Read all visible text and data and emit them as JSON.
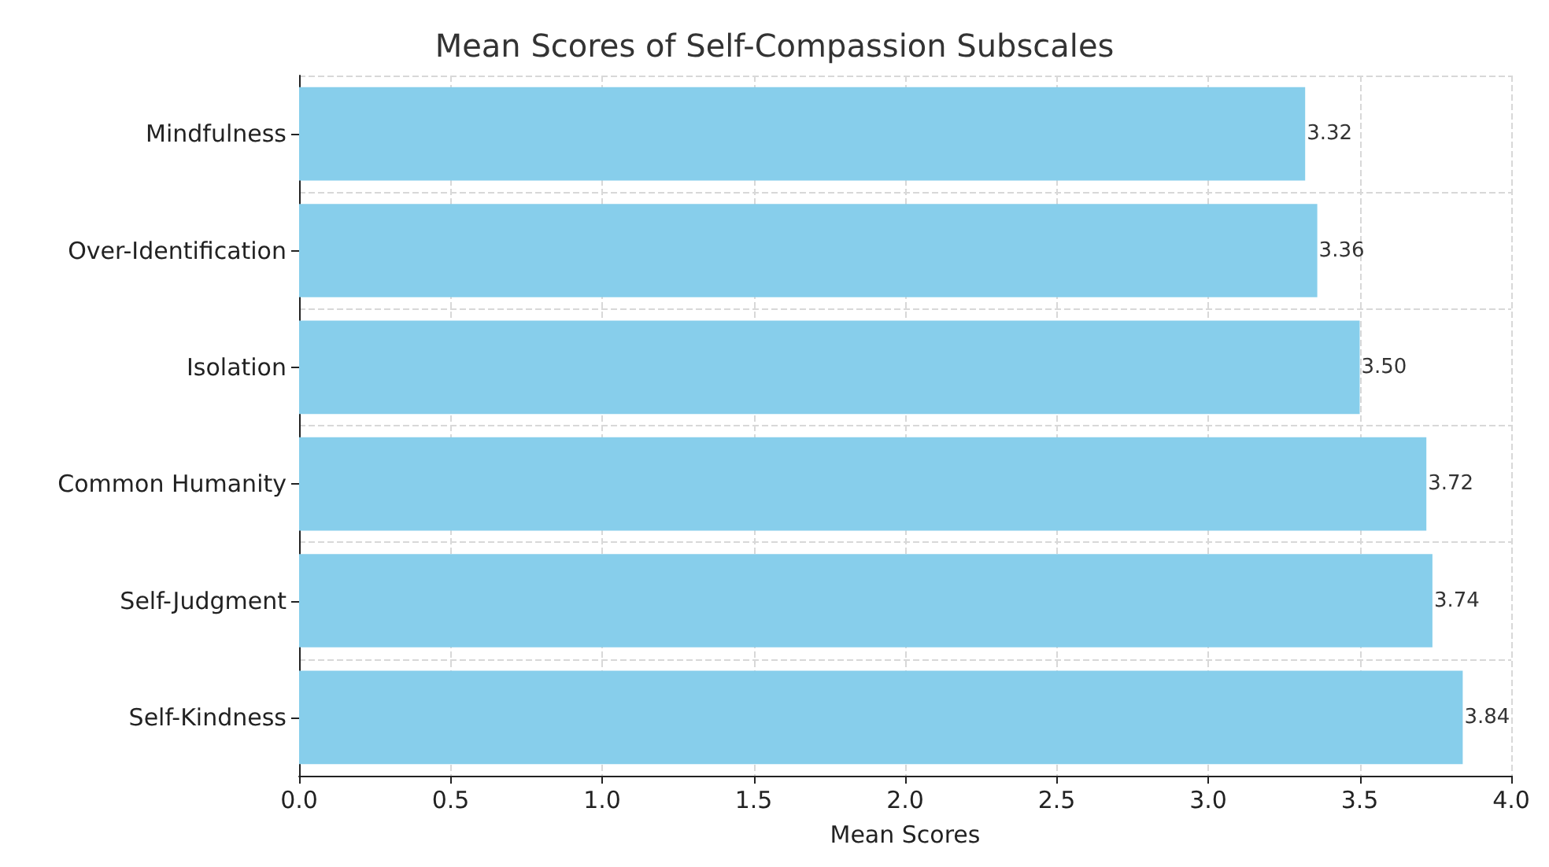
{
  "chart_data": {
    "type": "bar",
    "orientation": "horizontal",
    "title": "Mean Scores of Self-Compassion Subscales",
    "xlabel": "Mean Scores",
    "categories": [
      "Mindfulness",
      "Over-Identification",
      "Isolation",
      "Common Humanity",
      "Self-Judgment",
      "Self-Kindness"
    ],
    "values": [
      3.32,
      3.36,
      3.5,
      3.72,
      3.74,
      3.84
    ],
    "value_labels": [
      "3.32",
      "3.36",
      "3.50",
      "3.72",
      "3.74",
      "3.84"
    ],
    "color": "#87ceeb",
    "xlim": [
      0,
      4
    ],
    "xticks": [
      {
        "value": 0,
        "label": "0.0"
      },
      {
        "value": 0.5,
        "label": "0.5"
      },
      {
        "value": 1,
        "label": "1.0"
      },
      {
        "value": 1.5,
        "label": "1.5"
      },
      {
        "value": 2,
        "label": "2.0"
      },
      {
        "value": 2.5,
        "label": "2.5"
      },
      {
        "value": 3,
        "label": "3.0"
      },
      {
        "value": 3.5,
        "label": "3.5"
      },
      {
        "value": 4,
        "label": "4.0"
      }
    ],
    "grid": true
  }
}
